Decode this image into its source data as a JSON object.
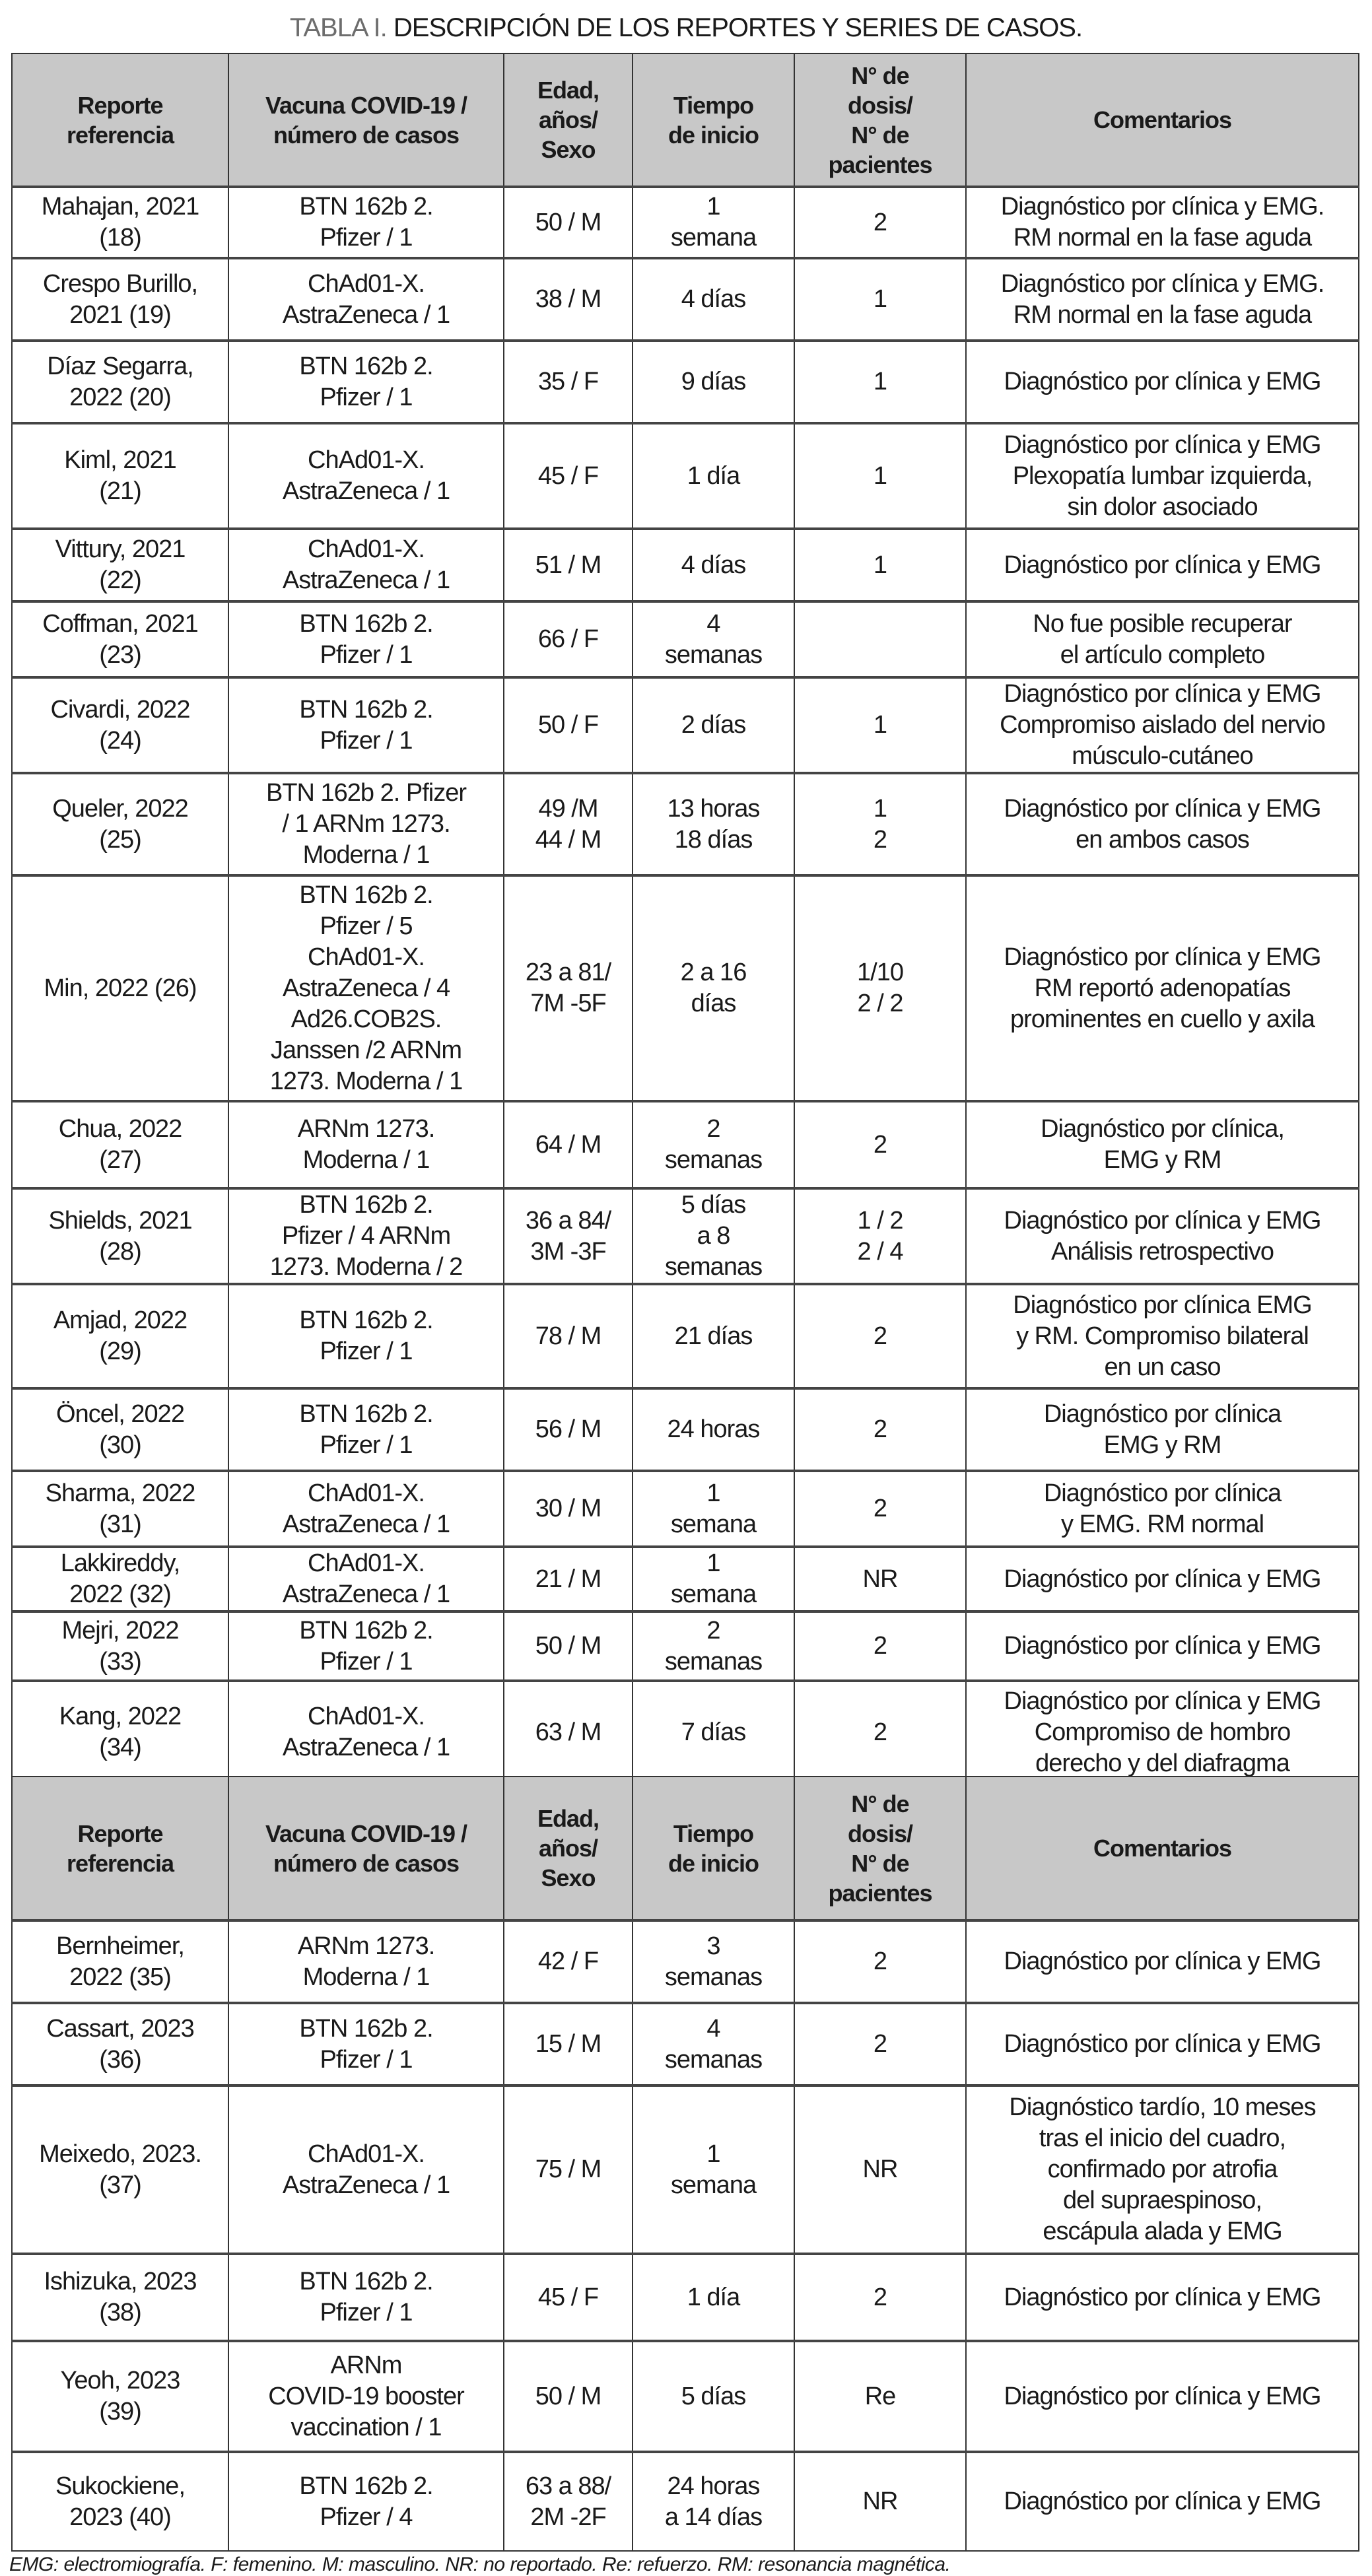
{
  "title": {
    "label": "TABLA I.",
    "text": " DESCRIPCIÓN DE LOS REPORTES Y SERIES DE CASOS."
  },
  "headers": [
    "Reporte\nreferencia",
    "Vacuna COVID-19 /\nnúmero de casos",
    "Edad,\naños/\nSexo",
    "Tiempo\nde inicio",
    "N° de\ndosis/\nN° de\npacientes",
    "Comentarios"
  ],
  "table1": [
    [
      "Mahajan, 2021\n(18)",
      "BTN 162b 2.\nPfizer / 1",
      "50 / M",
      "1\nsemana",
      "2",
      "Diagnóstico por clínica y EMG.\nRM normal en la fase aguda"
    ],
    [
      "Crespo Burillo,\n2021 (19)",
      "ChAd01-X.\nAstraZeneca / 1",
      "38 / M",
      "4 días",
      "1",
      "Diagnóstico por clínica y EMG.\nRM normal en la fase aguda"
    ],
    [
      "Díaz Segarra,\n2022 (20)",
      "BTN 162b 2.\nPfizer / 1",
      "35 / F",
      "9 días",
      "1",
      "Diagnóstico por clínica y EMG"
    ],
    [
      "Kiml, 2021\n(21)",
      "ChAd01-X.\nAstraZeneca / 1",
      "45 / F",
      "1 día",
      "1",
      "Diagnóstico por clínica y EMG\nPlexopatía lumbar izquierda,\nsin dolor asociado"
    ],
    [
      "Vittury, 2021\n(22)",
      "ChAd01-X.\nAstraZeneca / 1",
      "51 / M",
      "4 días",
      "1",
      "Diagnóstico por clínica y EMG"
    ],
    [
      "Coffman, 2021\n(23)",
      "BTN 162b 2.\nPfizer / 1",
      "66 / F",
      "4\nsemanas",
      "",
      "No fue posible recuperar\nel artículo completo"
    ],
    [
      "Civardi, 2022\n(24)",
      "BTN 162b 2.\nPfizer / 1",
      "50 / F",
      "2 días",
      "1",
      "Diagnóstico por clínica y EMG\nCompromiso aislado del nervio\nmúsculo-cutáneo"
    ],
    [
      "Queler, 2022\n(25)",
      "BTN 162b 2. Pfizer\n/ 1 ARNm 1273.\nModerna / 1",
      "49 /M\n44 / M",
      "13 horas\n18 días",
      "1\n2",
      "Diagnóstico por clínica y EMG\nen ambos casos"
    ],
    [
      "Min, 2022 (26)",
      "BTN 162b 2.\nPfizer / 5\nChAd01-X.\nAstraZeneca / 4\nAd26.COB2S.\nJanssen /2 ARNm\n1273. Moderna / 1",
      "23 a 81/\n7M -5F",
      "2 a 16\ndías",
      "1/10\n2 / 2",
      "Diagnóstico por clínica y EMG\nRM reportó adenopatías\nprominentes en cuello y axila"
    ],
    [
      "Chua, 2022\n(27)",
      "ARNm 1273.\nModerna / 1",
      "64 / M",
      "2\nsemanas",
      "2",
      "Diagnóstico por clínica,\nEMG y RM"
    ],
    [
      "Shields, 2021\n(28)",
      "BTN 162b 2.\nPfizer / 4 ARNm\n1273. Moderna / 2",
      "36 a 84/\n3M -3F",
      "5 días\na 8\nsemanas",
      "1 / 2\n2 / 4",
      "Diagnóstico por clínica y EMG\nAnálisis retrospectivo"
    ],
    [
      "Amjad, 2022\n(29)",
      "BTN 162b 2.\nPfizer / 1",
      "78 / M",
      "21 días",
      "2",
      "Diagnóstico por clínica EMG\ny RM. Compromiso bilateral\nen un caso"
    ],
    [
      "Öncel, 2022\n(30)",
      "BTN 162b 2.\nPfizer / 1",
      "56 / M",
      "24 horas",
      "2",
      "Diagnóstico por clínica\nEMG y RM"
    ],
    [
      "Sharma, 2022\n(31)",
      "ChAd01-X.\nAstraZeneca / 1",
      "30 / M",
      "1\nsemana",
      "2",
      "Diagnóstico por clínica\ny EMG. RM normal"
    ],
    [
      "Lakkireddy,\n2022 (32)",
      "ChAd01-X.\nAstraZeneca / 1",
      "21 / M",
      "1\nsemana",
      "NR",
      "Diagnóstico por clínica y EMG"
    ],
    [
      "Mejri, 2022\n(33)",
      "BTN 162b 2.\nPfizer / 1",
      "50 / M",
      "2\nsemanas",
      "2",
      "Diagnóstico por clínica y EMG"
    ],
    [
      "Kang, 2022\n(34)",
      "ChAd01-X.\nAstraZeneca / 1",
      "63 / M",
      "7 días",
      "2",
      "Diagnóstico por clínica y EMG\nCompromiso de hombro\nderecho y del diafragma"
    ]
  ],
  "table2": [
    [
      "Bernheimer,\n2022 (35)",
      "ARNm 1273.\nModerna / 1",
      "42 / F",
      "3\nsemanas",
      "2",
      "Diagnóstico por clínica y EMG"
    ],
    [
      "Cassart, 2023\n(36)",
      "BTN 162b 2.\nPfizer / 1",
      "15 / M",
      "4\nsemanas",
      "2",
      "Diagnóstico por clínica y EMG"
    ],
    [
      "Meixedo, 2023.\n(37)",
      "ChAd01-X.\nAstraZeneca / 1",
      "75 / M",
      "1\nsemana",
      "NR",
      "Diagnóstico tardío, 10 meses\ntras el inicio del cuadro,\nconfirmado por atrofia\ndel supraespinoso,\nescápula alada y EMG"
    ],
    [
      "Ishizuka, 2023\n(38)",
      "BTN 162b 2.\nPfizer / 1",
      "45 / F",
      "1 día",
      "2",
      "Diagnóstico por clínica y EMG"
    ],
    [
      "Yeoh, 2023\n(39)",
      "ARNm\nCOVID-19 booster\nvaccination / 1",
      "50 / M",
      "5 días",
      "Re",
      "Diagnóstico por clínica y EMG"
    ],
    [
      "Sukockiene,\n2023 (40)",
      "BTN 162b 2.\nPfizer / 4",
      "63 a 88/\n2M -2F",
      "24 horas\na 14 días",
      "NR",
      "Diagnóstico por clínica y EMG"
    ]
  ],
  "footnote": "EMG: electromiografía. F: femenino. M: masculino. NR: no reportado. Re: refuerzo. RM: resonancia magnética."
}
